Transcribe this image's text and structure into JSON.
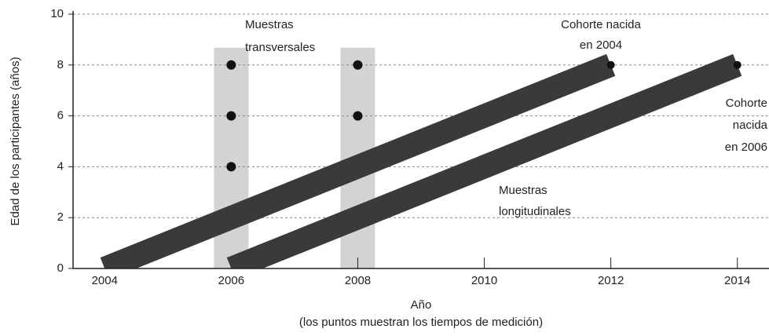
{
  "chart_data": {
    "type": "line",
    "x_label": "Año",
    "x_sublabel": "(los puntos muestran los tiempos de medición)",
    "y_label": "Edad de los participantes (años)",
    "xlim": [
      2003.5,
      2014.5
    ],
    "xticks": [
      2004,
      2006,
      2008,
      2010,
      2012,
      2014
    ],
    "ylim": [
      0,
      10
    ],
    "yticks": [
      0,
      2,
      4,
      6,
      8,
      10
    ],
    "grid": true,
    "series": [
      {
        "color": "#3a3a3a",
        "x": [
          2004,
          2012
        ],
        "values": [
          0,
          8
        ]
      },
      {
        "color": "#3a3a3a",
        "x": [
          2006,
          2014
        ],
        "values": [
          0,
          8
        ]
      }
    ],
    "points": {
      "color": "#111111",
      "x": [
        2006,
        2006,
        2006,
        2008,
        2008
      ],
      "values": [
        8,
        6,
        4,
        8,
        6
      ]
    },
    "annotations": [
      {
        "lines": [
          "Muestras",
          "transversales"
        ]
      },
      {
        "lines": [
          "Cohorte nacida",
          "en 2004"
        ]
      },
      {
        "lines": [
          "Cohorte",
          "nacida",
          "en 2006"
        ]
      },
      {
        "lines": [
          "Muestras",
          "longitudinales"
        ]
      }
    ]
  }
}
